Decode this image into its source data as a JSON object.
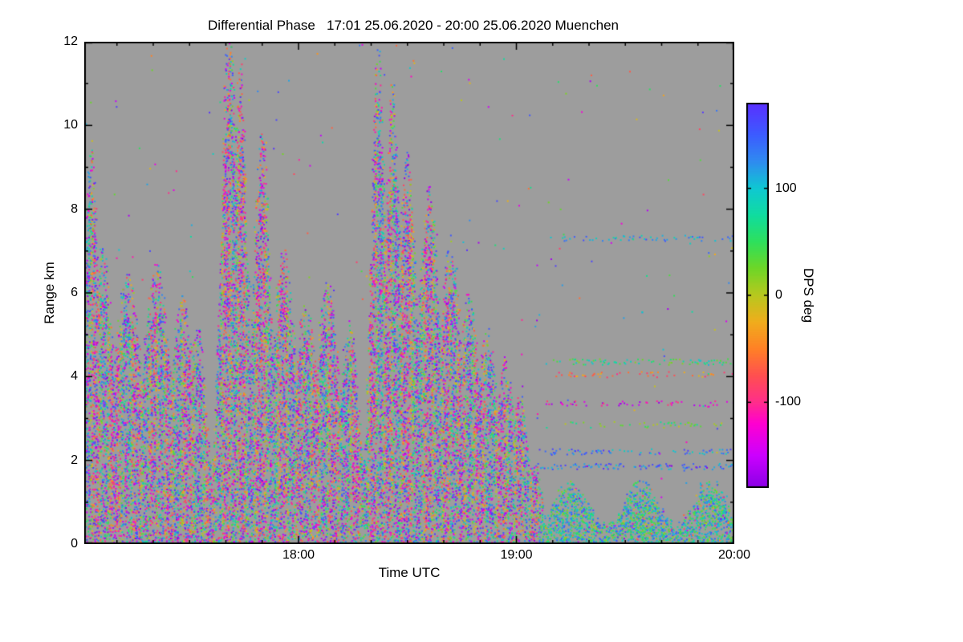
{
  "chart_data": {
    "type": "heatmap",
    "title": "Differential Phase   17:01 25.06.2020 - 20:00 25.06.2020 Muenchen",
    "xlabel": "Time UTC",
    "ylabel": "Range km",
    "colorbar_label": "DPS deg",
    "x_start": "17:01",
    "x_end": "20:00",
    "x_total_minutes": 179,
    "x_ticks": [
      {
        "label": "18:00",
        "minutes": 59
      },
      {
        "label": "19:00",
        "minutes": 119
      },
      {
        "label": "20:00",
        "minutes": 179
      }
    ],
    "x_minor_tick_minutes": 10,
    "y_range": [
      0,
      12
    ],
    "y_ticks": [
      0,
      2,
      4,
      6,
      8,
      10,
      12
    ],
    "y_minor_tick_km": 1,
    "value_range": [
      -180,
      180
    ],
    "colorbar_ticks": [
      {
        "label": "100",
        "value": 100
      },
      {
        "label": "0",
        "value": 0
      },
      {
        "label": "-100",
        "value": -100
      }
    ],
    "background_color": "#9d9d9d",
    "colormap": [
      {
        "v": -180,
        "c": "#8a00e6"
      },
      {
        "v": -150,
        "c": "#cc00ff"
      },
      {
        "v": -120,
        "c": "#ff00d0"
      },
      {
        "v": -100,
        "c": "#ff2e8a"
      },
      {
        "v": -75,
        "c": "#ff5050"
      },
      {
        "v": -50,
        "c": "#ff8126"
      },
      {
        "v": -25,
        "c": "#f0ad1c"
      },
      {
        "v": 0,
        "c": "#b8c81e"
      },
      {
        "v": 25,
        "c": "#6ed627"
      },
      {
        "v": 50,
        "c": "#2ee05c"
      },
      {
        "v": 75,
        "c": "#10dca0"
      },
      {
        "v": 100,
        "c": "#0fc8d2"
      },
      {
        "v": 125,
        "c": "#2f8cf0"
      },
      {
        "v": 150,
        "c": "#3c5cff"
      },
      {
        "v": 180,
        "c": "#5a30ff"
      }
    ],
    "plumes": [
      {
        "c": 2,
        "top": 8.6,
        "w": 3
      },
      {
        "c": 5,
        "top": 6.4,
        "w": 5
      },
      {
        "c": 12,
        "top": 5.8,
        "w": 6
      },
      {
        "c": 20,
        "top": 6.0,
        "w": 6
      },
      {
        "c": 27,
        "top": 5.3,
        "w": 5
      },
      {
        "c": 31,
        "top": 4.8,
        "w": 4
      },
      {
        "c": 40,
        "top": 11.2,
        "w": 3.5
      },
      {
        "c": 43,
        "top": 10.3,
        "w": 3
      },
      {
        "c": 49,
        "top": 8.8,
        "w": 3.5
      },
      {
        "c": 55,
        "top": 6.3,
        "w": 5
      },
      {
        "c": 61,
        "top": 5.3,
        "w": 5
      },
      {
        "c": 67,
        "top": 5.6,
        "w": 5
      },
      {
        "c": 73,
        "top": 4.8,
        "w": 4
      },
      {
        "c": 81,
        "top": 10.6,
        "w": 3
      },
      {
        "c": 85,
        "top": 9.9,
        "w": 3
      },
      {
        "c": 89,
        "top": 8.4,
        "w": 4
      },
      {
        "c": 95,
        "top": 7.7,
        "w": 4.5
      },
      {
        "c": 101,
        "top": 6.6,
        "w": 4.5
      },
      {
        "c": 106,
        "top": 5.4,
        "w": 4.5
      },
      {
        "c": 111,
        "top": 4.6,
        "w": 4.5
      },
      {
        "c": 116,
        "top": 4.0,
        "w": 4
      },
      {
        "c": 120,
        "top": 3.2,
        "w": 3.5
      },
      {
        "c": 124,
        "top": 1.8,
        "w": 3
      }
    ],
    "low_band": {
      "t_start": 126,
      "t_end": 179,
      "top_min": 0.35,
      "top_max": 1.35,
      "value_bias": 85
    },
    "streaks": [
      {
        "h": 7.3,
        "v": 120,
        "t0": 127,
        "t1": 179,
        "d": 0.3
      },
      {
        "h": 4.35,
        "v": 60,
        "t0": 126,
        "t1": 179,
        "d": 0.35
      },
      {
        "h": 4.05,
        "v": -60,
        "t0": 130,
        "t1": 179,
        "d": 0.25
      },
      {
        "h": 3.35,
        "v": -130,
        "t0": 126,
        "t1": 179,
        "d": 0.3
      },
      {
        "h": 2.85,
        "v": 40,
        "t0": 132,
        "t1": 179,
        "d": 0.25
      },
      {
        "h": 2.2,
        "v": 130,
        "t0": 126,
        "t1": 179,
        "d": 0.3
      },
      {
        "h": 1.85,
        "v": 140,
        "t0": 124,
        "t1": 179,
        "d": 0.45
      }
    ]
  }
}
